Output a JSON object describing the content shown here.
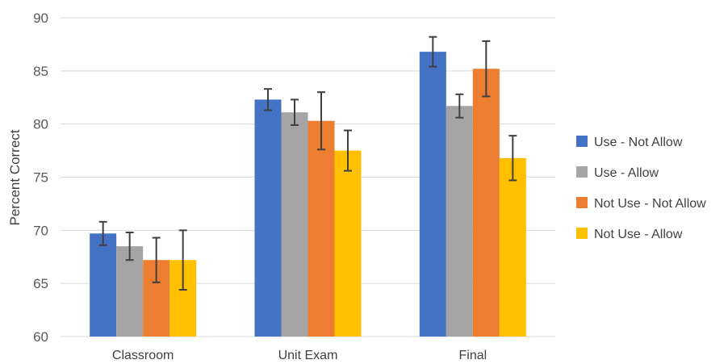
{
  "chart_data": {
    "type": "bar",
    "title": "",
    "xlabel": "",
    "ylabel": "Percent Correct",
    "ylim": [
      60,
      90
    ],
    "yticks": [
      60,
      65,
      70,
      75,
      80,
      85,
      90
    ],
    "grid": true,
    "legend_position": "right",
    "categories": [
      "Classroom",
      "Unit Exam",
      "Final"
    ],
    "error_bars": true,
    "series": [
      {
        "name": "Use - Not Allow",
        "color": "#4472C4",
        "values": [
          69.7,
          82.3,
          86.8
        ],
        "errors": [
          1.1,
          1.0,
          1.4
        ]
      },
      {
        "name": "Use - Allow",
        "color": "#A5A5A5",
        "values": [
          68.5,
          81.1,
          81.7
        ],
        "errors": [
          1.3,
          1.2,
          1.1
        ]
      },
      {
        "name": "Not Use - Not Allow",
        "color": "#ED7D31",
        "values": [
          67.2,
          80.3,
          85.2
        ],
        "errors": [
          2.1,
          2.7,
          2.6
        ]
      },
      {
        "name": "Not Use - Allow",
        "color": "#FFC000",
        "values": [
          67.2,
          77.5,
          76.8
        ],
        "errors": [
          2.8,
          1.9,
          2.1
        ]
      }
    ]
  }
}
